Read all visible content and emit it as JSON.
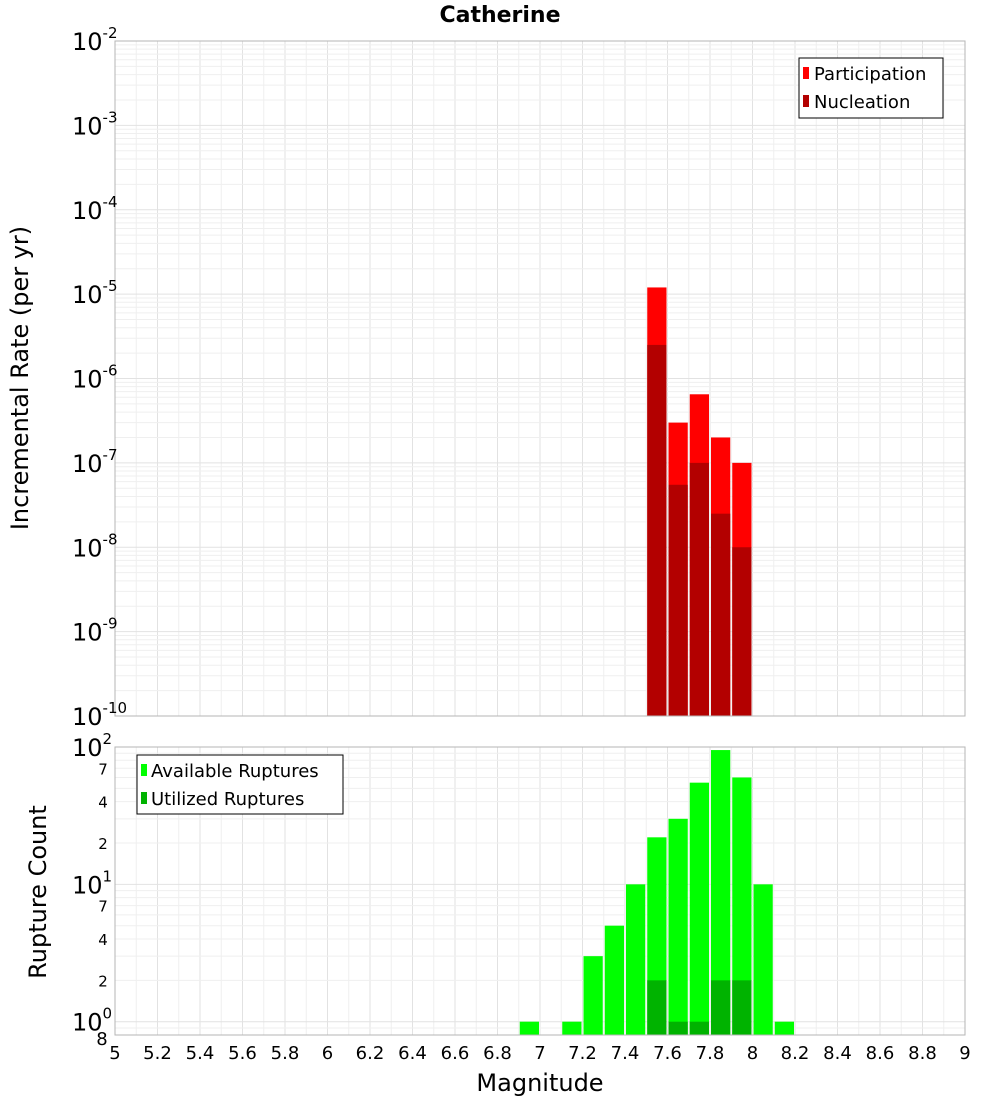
{
  "chart_data": [
    {
      "type": "bar",
      "title": "Catherine",
      "ylabel": "Incremental Rate (per yr)",
      "xlabel": "",
      "yscale": "log",
      "ylim": [
        1e-10,
        0.01
      ],
      "xlim": [
        5,
        9
      ],
      "bin_width": 0.1,
      "y_tick_exponents": [
        "-10",
        "-9",
        "-8",
        "-7",
        "-6",
        "-5",
        "-4",
        "-3",
        "-2"
      ],
      "y_tick_base": "10",
      "legend_position": "top-right",
      "legend": [
        "Participation",
        "Nucleation"
      ],
      "series": [
        {
          "name": "Participation",
          "color": "#ff0000",
          "x": [
            7.55,
            7.65,
            7.75,
            7.85,
            7.95
          ],
          "values": [
            1.2e-05,
            3e-07,
            6.5e-07,
            2e-07,
            1e-07
          ]
        },
        {
          "name": "Nucleation",
          "color": "#b30000",
          "x": [
            7.55,
            7.65,
            7.75,
            7.85,
            7.95
          ],
          "values": [
            2.5e-06,
            5.5e-08,
            1e-07,
            2.5e-08,
            1e-08
          ]
        }
      ]
    },
    {
      "type": "bar",
      "title": "",
      "ylabel": "Rupture Count",
      "xlabel": "Magnitude",
      "yscale": "log",
      "ylim": [
        0.8,
        100
      ],
      "xlim": [
        5,
        9
      ],
      "bin_width": 0.1,
      "y_tick_base": "10",
      "y_major_ticks": [
        {
          "value": 1,
          "exp": "0"
        },
        {
          "value": 10,
          "exp": "1"
        },
        {
          "value": 100,
          "exp": "2"
        }
      ],
      "y_minor_ticks": [
        2,
        4,
        7,
        20,
        40,
        70
      ],
      "y_minor_labels": [
        "2",
        "4",
        "7",
        "2",
        "4",
        "7"
      ],
      "y_bottom_label": "8",
      "x_ticks": [
        "5",
        "5.2",
        "5.4",
        "5.6",
        "5.8",
        "6",
        "6.2",
        "6.4",
        "6.6",
        "6.8",
        "7",
        "7.2",
        "7.4",
        "7.6",
        "7.8",
        "8",
        "8.2",
        "8.4",
        "8.6",
        "8.8",
        "9"
      ],
      "legend_position": "top-left",
      "legend": [
        "Available Ruptures",
        "Utilized Ruptures"
      ],
      "series": [
        {
          "name": "Available Ruptures",
          "color": "#00ff00",
          "x": [
            6.95,
            7.15,
            7.25,
            7.35,
            7.45,
            7.55,
            7.65,
            7.75,
            7.85,
            7.95,
            8.05,
            8.15
          ],
          "values": [
            1,
            1,
            3,
            5,
            10,
            22,
            30,
            55,
            95,
            60,
            10,
            1
          ]
        },
        {
          "name": "Utilized Ruptures",
          "color": "#00b300",
          "x": [
            7.55,
            7.65,
            7.75,
            7.85,
            7.95
          ],
          "values": [
            2,
            1,
            1,
            2,
            2
          ]
        }
      ]
    }
  ]
}
